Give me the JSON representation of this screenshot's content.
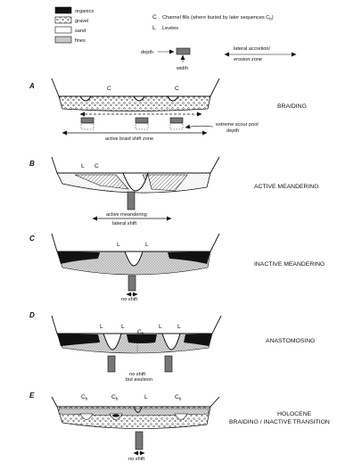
{
  "legend": {
    "items": [
      {
        "label": "organics",
        "swatch": "organics"
      },
      {
        "label": "gravel",
        "swatch": "gravel"
      },
      {
        "label": "sand",
        "swatch": "sand"
      },
      {
        "label": "fines",
        "swatch": "fines"
      }
    ],
    "key": [
      {
        "symbol": "C",
        "text": "Channel fills (where buried by later sequences C",
        "subscript": "b",
        "suffix": ")"
      },
      {
        "symbol": "L",
        "text": "Levées"
      }
    ],
    "depth_label": "depth",
    "width_label": "width",
    "lateral_label_1": "lateral accretion/",
    "lateral_label_2": "erosion zone"
  },
  "panels": [
    {
      "letter": "A",
      "title": "BRAIDING",
      "channel_labels": [
        "C",
        "C"
      ],
      "annotations": [
        "extreme scour pool",
        "depth",
        "active braid shift zone"
      ]
    },
    {
      "letter": "B",
      "title": "ACTIVE MEANDERING",
      "channel_labels": [
        "L",
        "C"
      ],
      "annotations": [
        "active meandering",
        "lateral shift"
      ]
    },
    {
      "letter": "C",
      "title": "INACTIVE MEANDERING",
      "channel_labels": [
        "L",
        "L"
      ],
      "annotations": [
        "no shift"
      ]
    },
    {
      "letter": "D",
      "title": "ANASTOMOSING",
      "channel_labels": [
        "L",
        "L",
        "C",
        "b",
        "L",
        "L"
      ],
      "annotations": [
        "no shift",
        "but avulsion"
      ]
    },
    {
      "letter": "E",
      "title_1": "HOLOCENE",
      "title_2": "BRAIDING / INACTIVE TRANSITION",
      "channel_labels": [
        "C",
        "b",
        "C",
        "b",
        "L",
        "C",
        "b"
      ],
      "annotations": [
        "no shift"
      ]
    }
  ]
}
